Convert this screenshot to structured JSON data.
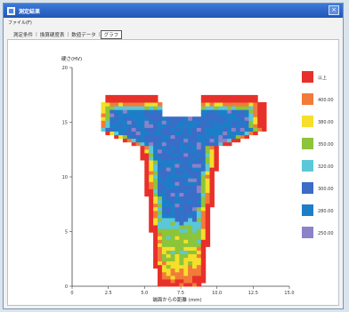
{
  "window": {
    "title": "測定結果",
    "menu": [
      "ファイル(F)"
    ],
    "tabs": [
      {
        "label": "測定条件",
        "active": false
      },
      {
        "label": "換算硬度表",
        "active": false
      },
      {
        "label": "数値データ",
        "active": false
      },
      {
        "label": "グラフ",
        "active": true
      }
    ]
  },
  "chart_data": {
    "type": "heatmap",
    "ylabel": "硬さ(HV)",
    "xlabel": "端面からの距離 (mm)",
    "xlim": [
      0,
      15
    ],
    "ylim": [
      0,
      20
    ],
    "x_ticks": [
      "0",
      "2.5",
      "5.0",
      "7.5",
      "10.0",
      "12.5",
      "15.0"
    ],
    "y_ticks": [
      "0",
      "5",
      "10",
      "15",
      "20"
    ],
    "legend": [
      {
        "label": "以上",
        "color": "#e8302a"
      },
      {
        "label": "400.00",
        "color": "#f27b3a"
      },
      {
        "label": "380.00",
        "color": "#f5df2a"
      },
      {
        "label": "350.00",
        "color": "#8cc43a"
      },
      {
        "label": "320.00",
        "color": "#5ac8d8"
      },
      {
        "label": "300.00",
        "color": "#3a6cc8"
      },
      {
        "label": "280.00",
        "color": "#1d7ec8"
      },
      {
        "label": "250.00",
        "color": "#8c82c8"
      }
    ]
  }
}
